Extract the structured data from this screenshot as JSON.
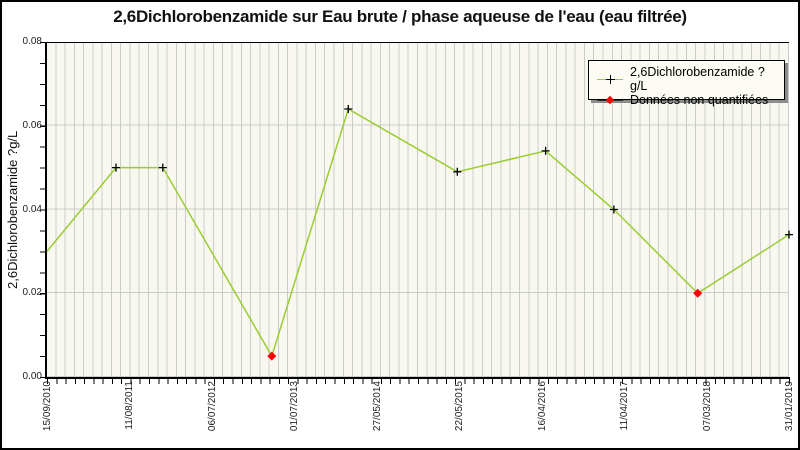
{
  "title": "2,6Dichlorobenzamide sur Eau brute / phase aqueuse de l'eau (eau filtrée)",
  "colors": {
    "line": "#9ACD32",
    "marker_plus": "#000000",
    "non_quantified": "#FF0000",
    "plot_background": "#F8F8F0",
    "gridline": "#CBCBCB",
    "legend_background": "#FCFCF4",
    "legend_shadow": "#8C8C8C"
  },
  "legend": {
    "items": [
      {
        "label": "2,6Dichlorobenzamide ?g/L",
        "line_color": "#9ACD32",
        "marker": "plus",
        "marker_color": "#000000"
      },
      {
        "label": "Données non quantifiées",
        "line_color": "#333333",
        "marker": "diamond",
        "marker_color": "#FF0000"
      }
    ]
  },
  "chart_data": {
    "type": "line",
    "title": "2,6Dichlorobenzamide sur Eau brute / phase aqueuse de l'eau (eau filtrée)",
    "xlabel": "",
    "ylabel": "2,6Dichlorobenzamide ?g/L",
    "ylim": [
      0,
      0.08
    ],
    "y_tick_labels": [
      "0.00",
      "0.02",
      "0.04",
      "0.06",
      "0.08"
    ],
    "y_minor_tick_step": 0.005,
    "x_tick_labels": [
      "15/09/2010",
      "11/08/2011",
      "06/07/2012",
      "01/07/2013",
      "27/05/2014",
      "22/05/2015",
      "16/04/2016",
      "11/04/2017",
      "07/03/2018",
      "31/01/2019"
    ],
    "grid": {
      "vertical_minor": true,
      "horizontal_major": true
    },
    "legend_position": "top-right",
    "series": [
      {
        "name": "2,6Dichlorobenzamide ?g/L",
        "color": "#9ACD32",
        "marker": "plus",
        "values": [
          0.03,
          0.05,
          0.05,
          0.005,
          0.064,
          0.049,
          0.054,
          0.04,
          0.02,
          0.034
        ]
      },
      {
        "name": "Données non quantifiées",
        "color": "#FF0000",
        "marker": "diamond",
        "values": [
          0.005,
          0.02
        ]
      }
    ],
    "points": [
      {
        "x_frac": 0.0,
        "value": 0.03,
        "quantified": true,
        "marker": "none"
      },
      {
        "x_frac": 0.093,
        "value": 0.05,
        "quantified": true,
        "marker": "plus"
      },
      {
        "x_frac": 0.156,
        "value": 0.05,
        "quantified": true,
        "marker": "plus"
      },
      {
        "x_frac": 0.303,
        "value": 0.005,
        "quantified": false,
        "marker": "diamond"
      },
      {
        "x_frac": 0.406,
        "value": 0.064,
        "quantified": true,
        "marker": "plus"
      },
      {
        "x_frac": 0.553,
        "value": 0.049,
        "quantified": true,
        "marker": "plus"
      },
      {
        "x_frac": 0.672,
        "value": 0.054,
        "quantified": true,
        "marker": "plus"
      },
      {
        "x_frac": 0.764,
        "value": 0.04,
        "quantified": true,
        "marker": "plus"
      },
      {
        "x_frac": 0.877,
        "value": 0.02,
        "quantified": false,
        "marker": "diamond"
      },
      {
        "x_frac": 1.0,
        "value": 0.034,
        "quantified": true,
        "marker": "plus"
      }
    ]
  }
}
